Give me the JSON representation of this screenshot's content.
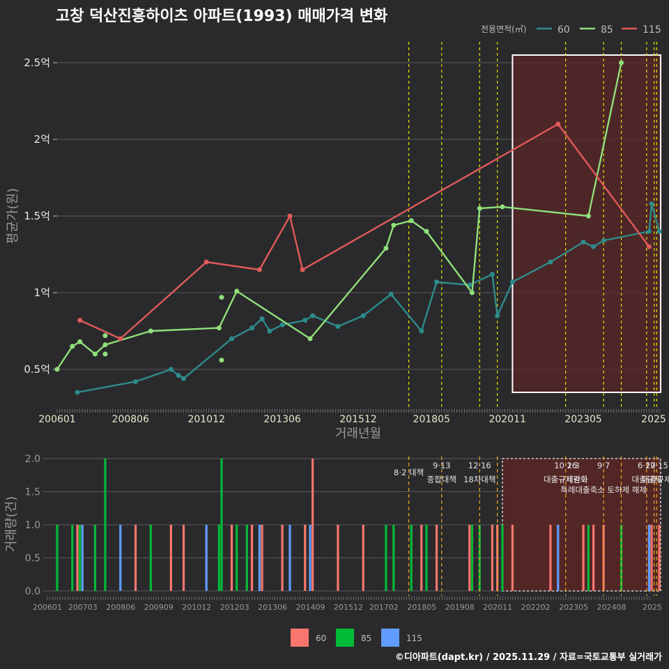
{
  "title": "고창 덕산진흥하이츠 아파트(1993) 매매가격 변화",
  "footer": "©디아파트(dapt.kr) / 2025.11.29 / 자료=국토교통부 실거래가",
  "colors": {
    "background": "#2a2a2c",
    "s60": "#2e8b8b",
    "s85": "#90e07a",
    "s115": "#e05a5a",
    "bar60": "#f8766d",
    "bar85": "#00ba38",
    "bar115": "#619cff",
    "policy_line": "#e6e600",
    "highlight": "#5a2626"
  },
  "chart_data": [
    {
      "type": "line",
      "title": "고창 덕산진흥하이츠 아파트(1993) 매매가격 변화",
      "xlabel": "거래년월",
      "ylabel": "평균가(원)",
      "legend_title": "전용면적(㎡)",
      "legend_position": "top-right",
      "ylim": [
        0.25,
        2.6
      ],
      "xlim": [
        "2006-01",
        "2025-11"
      ],
      "yticks": [
        0.5,
        1.0,
        1.5,
        2.0,
        2.5
      ],
      "ytick_labels": [
        "0.5억",
        "1억",
        "1.5억",
        "2억",
        "2.5억"
      ],
      "xtick_labels": [
        "200601",
        "200806",
        "201012",
        "201306",
        "201512",
        "201805",
        "202011",
        "202305",
        "2025"
      ],
      "highlight_box": {
        "x": [
          "2021-01",
          "2025-11"
        ],
        "y": [
          0.35,
          2.55
        ]
      },
      "policy_lines": [
        "2017-08",
        "2018-09",
        "2019-12",
        "2020-07",
        "2022-10",
        "2024-01",
        "2024-08",
        "2025-06",
        "2025-09",
        "2025-10"
      ],
      "series": [
        {
          "name": "60",
          "points": [
            [
              "2006-09",
              0.35
            ],
            [
              "2008-08",
              0.42
            ],
            [
              "2009-10",
              0.5
            ],
            [
              "2010-01",
              0.46
            ],
            [
              "2010-03",
              0.44
            ],
            [
              "2011-10",
              0.7
            ],
            [
              "2012-06",
              0.77
            ],
            [
              "2012-10",
              0.83
            ],
            [
              "2013-01",
              0.75
            ],
            [
              "2013-06",
              0.79
            ],
            [
              "2014-03",
              0.82
            ],
            [
              "2014-06",
              0.85
            ],
            [
              "2015-04",
              0.78
            ],
            [
              "2016-02",
              0.85
            ],
            [
              "2017-01",
              0.99
            ],
            [
              "2018-01",
              0.75
            ],
            [
              "2018-07",
              1.07
            ],
            [
              "2019-08",
              1.05
            ],
            [
              "2020-05",
              1.12
            ],
            [
              "2020-07",
              0.85
            ],
            [
              "2021-01",
              1.07
            ],
            [
              "2022-04",
              1.2
            ],
            [
              "2023-05",
              1.33
            ],
            [
              "2023-09",
              1.3
            ],
            [
              "2024-01",
              1.34
            ],
            [
              "2025-07",
              1.4
            ],
            [
              "2025-08",
              1.58
            ],
            [
              "2025-11",
              1.4
            ]
          ]
        },
        {
          "name": "85",
          "points": [
            [
              "2006-01",
              0.5
            ],
            [
              "2006-07",
              0.65
            ],
            [
              "2006-10",
              0.68
            ],
            [
              "2007-04",
              0.6
            ],
            [
              "2007-08",
              0.66
            ],
            [
              "2009-02",
              0.75
            ],
            [
              "2011-05",
              0.77
            ],
            [
              "2011-12",
              1.01
            ],
            [
              "2014-05",
              0.7
            ],
            [
              "2016-11",
              1.29
            ],
            [
              "2017-02",
              1.44
            ],
            [
              "2017-09",
              1.47
            ],
            [
              "2018-03",
              1.4
            ],
            [
              "2019-09",
              1.0
            ],
            [
              "2019-12",
              1.55
            ],
            [
              "2020-09",
              1.56
            ],
            [
              "2023-07",
              1.5
            ],
            [
              "2024-08",
              2.5
            ]
          ]
        },
        {
          "name": "115",
          "points": [
            [
              "2006-10",
              0.82
            ],
            [
              "2008-02",
              0.7
            ],
            [
              "2010-12",
              1.2
            ],
            [
              "2012-09",
              1.15
            ],
            [
              "2013-09",
              1.5
            ],
            [
              "2014-02",
              1.15
            ],
            [
              "2022-07",
              2.1
            ],
            [
              "2025-07",
              1.3
            ]
          ]
        }
      ],
      "extra_points": [
        {
          "series": "85",
          "x": "2007-08",
          "y": 0.72
        },
        {
          "series": "85",
          "x": "2007-08",
          "y": 0.6
        },
        {
          "series": "85",
          "x": "2011-06",
          "y": 0.97
        },
        {
          "series": "85",
          "x": "2011-06",
          "y": 0.56
        }
      ]
    },
    {
      "type": "bar",
      "xlabel": "",
      "ylabel": "거래량(건)",
      "ylim": [
        0,
        2.1
      ],
      "yticks": [
        0,
        0.5,
        1.0,
        1.5,
        2.0
      ],
      "ytick_labels": [
        "0.0",
        "0.5",
        "1.0",
        "1.5",
        "2.0"
      ],
      "xtick_labels": [
        "200601",
        "200703",
        "200806",
        "200909",
        "201012",
        "201203",
        "201306",
        "201409",
        "201512",
        "201702",
        "201805",
        "201908",
        "202011",
        "202202",
        "202305",
        "202408",
        "2025"
      ],
      "highlight_box": {
        "x": [
          "2020-09",
          "2025-11"
        ],
        "y": [
          0,
          2.0
        ]
      },
      "bars": [
        {
          "x": "2006-01",
          "series": "85",
          "value": 1
        },
        {
          "x": "2006-07",
          "series": "85",
          "value": 1
        },
        {
          "x": "2006-09",
          "series": "60",
          "value": 1
        },
        {
          "x": "2006-10",
          "series": "85",
          "value": 1
        },
        {
          "x": "2006-11",
          "series": "115",
          "value": 1
        },
        {
          "x": "2007-04",
          "series": "85",
          "value": 1
        },
        {
          "x": "2007-08",
          "series": "85",
          "value": 2
        },
        {
          "x": "2008-02",
          "series": "115",
          "value": 1
        },
        {
          "x": "2008-08",
          "series": "60",
          "value": 1
        },
        {
          "x": "2009-02",
          "series": "85",
          "value": 1
        },
        {
          "x": "2009-10",
          "series": "60",
          "value": 1
        },
        {
          "x": "2010-03",
          "series": "60",
          "value": 1
        },
        {
          "x": "2010-12",
          "series": "115",
          "value": 1
        },
        {
          "x": "2011-05",
          "series": "85",
          "value": 1
        },
        {
          "x": "2011-06",
          "series": "85",
          "value": 2
        },
        {
          "x": "2011-10",
          "series": "60",
          "value": 1
        },
        {
          "x": "2011-12",
          "series": "85",
          "value": 1
        },
        {
          "x": "2012-04",
          "series": "85",
          "value": 1
        },
        {
          "x": "2012-06",
          "series": "60",
          "value": 1
        },
        {
          "x": "2012-09",
          "series": "115",
          "value": 1
        },
        {
          "x": "2012-10",
          "series": "60",
          "value": 1
        },
        {
          "x": "2013-06",
          "series": "60",
          "value": 1
        },
        {
          "x": "2013-09",
          "series": "115",
          "value": 1
        },
        {
          "x": "2014-03",
          "series": "60",
          "value": 1
        },
        {
          "x": "2014-05",
          "series": "115",
          "value": 1
        },
        {
          "x": "2014-06",
          "series": "60",
          "value": 2
        },
        {
          "x": "2015-04",
          "series": "60",
          "value": 1
        },
        {
          "x": "2016-02",
          "series": "60",
          "value": 1
        },
        {
          "x": "2016-11",
          "series": "85",
          "value": 1
        },
        {
          "x": "2017-02",
          "series": "85",
          "value": 1
        },
        {
          "x": "2017-09",
          "series": "85",
          "value": 1
        },
        {
          "x": "2018-01",
          "series": "60",
          "value": 1
        },
        {
          "x": "2018-03",
          "series": "85",
          "value": 1
        },
        {
          "x": "2018-07",
          "series": "60",
          "value": 1
        },
        {
          "x": "2019-08",
          "series": "60",
          "value": 1
        },
        {
          "x": "2019-09",
          "series": "85",
          "value": 1
        },
        {
          "x": "2019-12",
          "series": "85",
          "value": 1
        },
        {
          "x": "2020-05",
          "series": "60",
          "value": 1
        },
        {
          "x": "2020-07",
          "series": "60",
          "value": 1
        },
        {
          "x": "2020-09",
          "series": "85",
          "value": 1
        },
        {
          "x": "2021-01",
          "series": "60",
          "value": 1
        },
        {
          "x": "2022-04",
          "series": "60",
          "value": 1
        },
        {
          "x": "2022-07",
          "series": "115",
          "value": 1
        },
        {
          "x": "2023-05",
          "series": "60",
          "value": 1
        },
        {
          "x": "2023-07",
          "series": "85",
          "value": 1
        },
        {
          "x": "2023-09",
          "series": "60",
          "value": 1
        },
        {
          "x": "2024-01",
          "series": "60",
          "value": 1
        },
        {
          "x": "2024-08",
          "series": "85",
          "value": 1
        },
        {
          "x": "2025-07",
          "series": "60",
          "value": 1
        },
        {
          "x": "2025-07",
          "series": "115",
          "value": 1
        },
        {
          "x": "2025-08",
          "series": "60",
          "value": 1
        },
        {
          "x": "2025-11",
          "series": "60",
          "value": 1
        }
      ],
      "annotations": [
        {
          "x": "2017-08",
          "date": "",
          "label": "8·2 대책"
        },
        {
          "x": "2018-09",
          "date": "9·13",
          "label": "종합대책"
        },
        {
          "x": "2019-12",
          "date": "12·16",
          "label": "18차대책"
        },
        {
          "x": "2022-10",
          "date": "10·26",
          "label": "대출규제강화"
        },
        {
          "x": "2023-01",
          "date": "1·3",
          "label": "규제완화"
        },
        {
          "x": "2024-01",
          "date": "9·7",
          "label": "특례대출축소 토허제 해제"
        },
        {
          "x": "2025-06",
          "date": "6·27",
          "label": "대출규제"
        },
        {
          "x": "2025-10",
          "date": "10·15",
          "label": "대출규제"
        }
      ]
    }
  ],
  "legend_bottom": [
    {
      "label": "60",
      "color": "#f8766d"
    },
    {
      "label": "85",
      "color": "#00ba38"
    },
    {
      "label": "115",
      "color": "#619cff"
    }
  ],
  "legend_top": [
    {
      "label": "60",
      "color": "#2e8b8b"
    },
    {
      "label": "85",
      "color": "#90e07a"
    },
    {
      "label": "115",
      "color": "#e05a5a"
    }
  ]
}
